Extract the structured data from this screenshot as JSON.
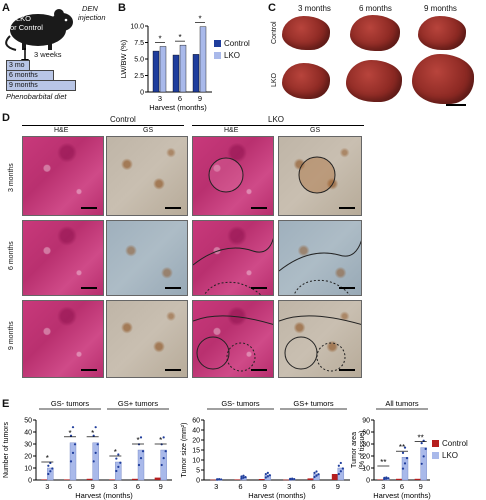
{
  "panels": {
    "A": {
      "letter": "A",
      "mouse_label": "LKO\nor Control",
      "mouse_label_l1": "LKO",
      "mouse_label_l2": "or Control",
      "den_l1": "DEN",
      "den_l2": "injection",
      "weeks": "3 weeks",
      "timepoints": [
        "3 mo",
        "6 months",
        "9 months"
      ],
      "diet": "Phenobarbital diet",
      "colors": {
        "timeline_fill": "#b9c6e6",
        "mouse": "#1a1a1a"
      }
    },
    "B": {
      "letter": "B",
      "ylabel": "LW/BW (%)",
      "xlabel": "Harvest (months)",
      "star": "*",
      "legend": [
        "Control",
        "LKO"
      ]
    },
    "C": {
      "letter": "C",
      "col_labels": [
        "3 months",
        "6 months",
        "9 months"
      ],
      "row_labels": [
        "Control",
        "LKO"
      ]
    },
    "D": {
      "letter": "D",
      "group_labels": [
        "Control",
        "LKO"
      ],
      "stain_labels": [
        "H&E",
        "GS",
        "H&E",
        "GS"
      ],
      "row_labels": [
        "3 months",
        "6 months",
        "9 months"
      ]
    },
    "E": {
      "letter": "E",
      "ylabel1": "Number of tumors",
      "ylabel2": "Tumor size (mm²)",
      "ylabel3_l1": "Tumor area",
      "ylabel3_l2": "(% of tissue)",
      "xlabel": "Harvest (months)",
      "group1_labels": [
        "GS- tumors",
        "GS+ tumors"
      ],
      "group2_labels": [
        "GS- tumors",
        "GS+ tumors"
      ],
      "group3_label": "All tumors",
      "legend": [
        "Control",
        "LKO"
      ],
      "star1": "*",
      "star2": "**"
    }
  },
  "colors": {
    "control": "#1f3d9c",
    "lko": "#a9b9ea",
    "control_e": "#b51e1e",
    "lko_e": "#a9b9ea"
  },
  "chart_data": [
    {
      "type": "bar",
      "ylabel": "LW/BW (%)",
      "xlabel": "Harvest (months)",
      "categories": [
        "3",
        "6",
        "9"
      ],
      "ylim": [
        0,
        10.0
      ],
      "yticks": [
        "0",
        "2.5",
        "5.0",
        "7.5",
        "10.0"
      ],
      "series": [
        {
          "name": "Control",
          "values": [
            6.2,
            5.6,
            5.7
          ]
        },
        {
          "name": "LKO",
          "values": [
            6.9,
            7.1,
            9.9
          ]
        }
      ]
    },
    {
      "type": "bar",
      "ylabel": "Number of tumors",
      "xlabel": "Harvest (months)",
      "categories": [
        "3",
        "6",
        "9",
        "3",
        "6",
        "9"
      ],
      "groups": [
        "GS- tumors",
        "GS+ tumors"
      ],
      "ylim": [
        0,
        50
      ],
      "yticks": [
        "0",
        "10",
        "20",
        "30",
        "40",
        "50"
      ],
      "series": [
        {
          "name": "Control",
          "values": [
            0.5,
            0.5,
            1,
            0.5,
            1,
            2
          ]
        },
        {
          "name": "LKO",
          "values": [
            10,
            31,
            31,
            15,
            25,
            25
          ]
        }
      ]
    },
    {
      "type": "bar",
      "ylabel": "Tumor size (mm²)",
      "xlabel": "Harvest (months)",
      "categories": [
        "3",
        "6",
        "9",
        "3",
        "6",
        "9"
      ],
      "groups": [
        "GS- tumors",
        "GS+ tumors"
      ],
      "ylim": [
        0,
        60
      ],
      "yticks": [
        "0",
        "5",
        "10",
        "15",
        "20",
        "40",
        "60"
      ],
      "series": [
        {
          "name": "Control",
          "values": [
            0.2,
            0.3,
            0.5,
            0.2,
            0.8,
            3
          ]
        },
        {
          "name": "LKO",
          "values": [
            0.3,
            1.5,
            2.5,
            0.5,
            3,
            6
          ]
        }
      ]
    },
    {
      "type": "bar",
      "ylabel": "Tumor area (% of tissue)",
      "xlabel": "Harvest (months)",
      "categories": [
        "3",
        "6",
        "9"
      ],
      "ylim": [
        0,
        90
      ],
      "yticks": [
        "0",
        "10",
        "20",
        "30",
        "60",
        "90"
      ],
      "series": [
        {
          "name": "Control",
          "values": [
            0.5,
            1,
            1
          ]
        },
        {
          "name": "LKO",
          "values": [
            1.5,
            19,
            27
          ]
        }
      ]
    }
  ]
}
